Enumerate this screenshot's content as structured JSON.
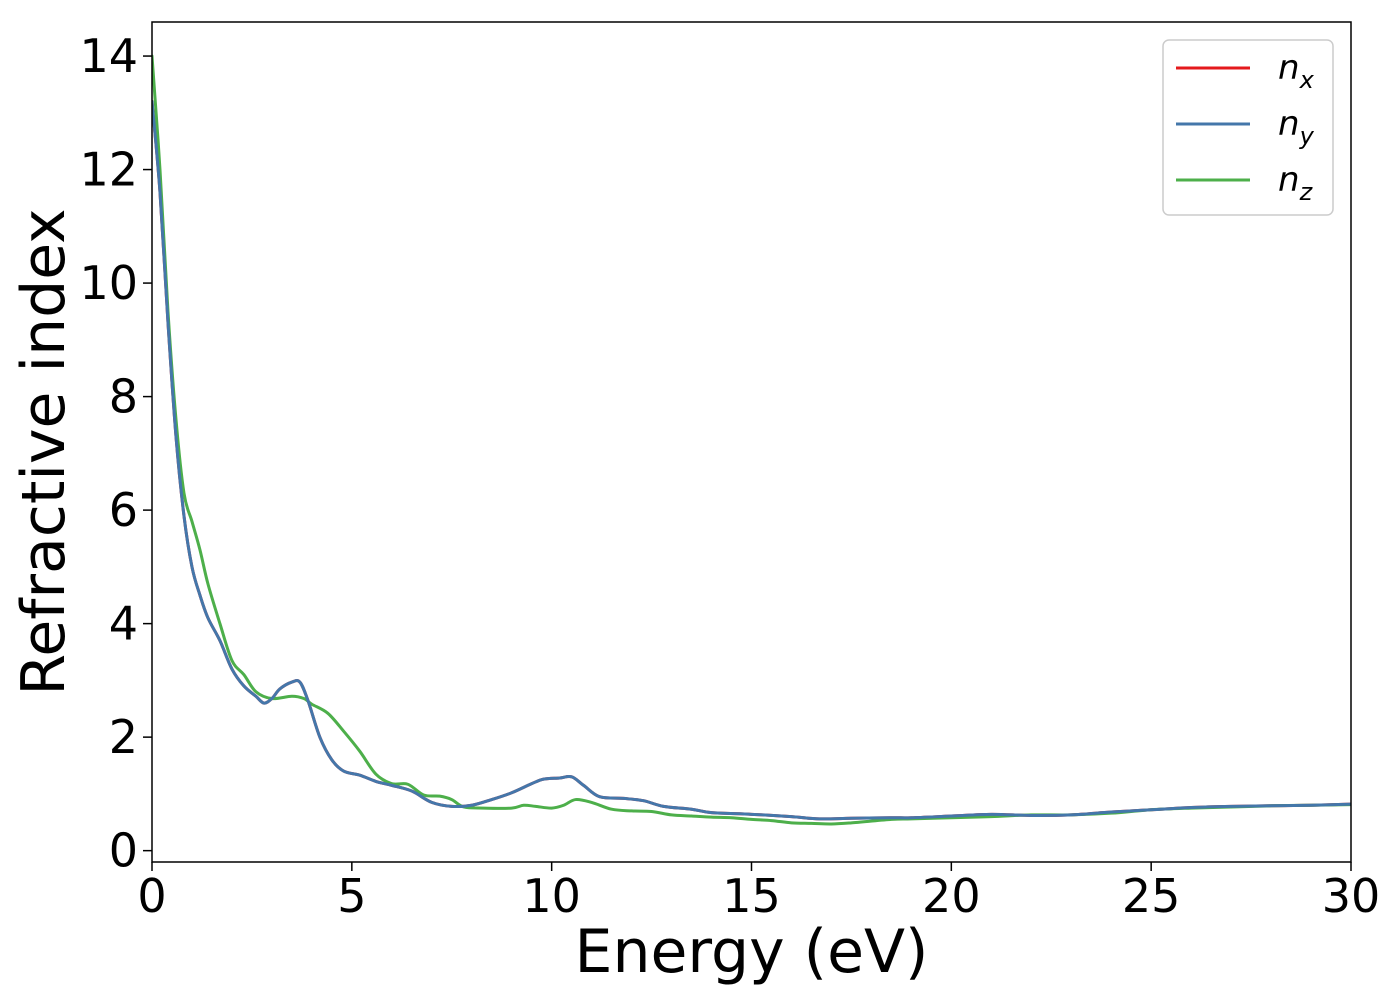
{
  "chart_data": {
    "type": "line",
    "title": "",
    "xlabel": "Energy (eV)",
    "ylabel": "Refractive index",
    "xlim": [
      0,
      30
    ],
    "ylim": [
      -0.2,
      14.6
    ],
    "xticks": [
      0,
      5,
      10,
      15,
      20,
      25,
      30
    ],
    "yticks": [
      0,
      2,
      4,
      6,
      8,
      10,
      12,
      14
    ],
    "grid": false,
    "legend": {
      "placement": "top-right"
    },
    "series": [
      {
        "name": "n_x",
        "legend_label": {
          "base": "n",
          "sub": "x"
        },
        "color": "#e41a1c",
        "points": [
          [
            0,
            13.2
          ],
          [
            0.2,
            11.6
          ],
          [
            0.4,
            9.3
          ],
          [
            0.6,
            7.3
          ],
          [
            0.8,
            5.9
          ],
          [
            1.0,
            5.0
          ],
          [
            1.2,
            4.5
          ],
          [
            1.4,
            4.1
          ],
          [
            1.7,
            3.7
          ],
          [
            2.0,
            3.2
          ],
          [
            2.3,
            2.9
          ],
          [
            2.6,
            2.72
          ],
          [
            2.8,
            2.6
          ],
          [
            3.0,
            2.68
          ],
          [
            3.2,
            2.85
          ],
          [
            3.5,
            2.97
          ],
          [
            3.7,
            2.97
          ],
          [
            3.9,
            2.65
          ],
          [
            4.2,
            2.0
          ],
          [
            4.5,
            1.6
          ],
          [
            4.8,
            1.4
          ],
          [
            5.2,
            1.33
          ],
          [
            5.6,
            1.22
          ],
          [
            6.0,
            1.15
          ],
          [
            6.5,
            1.05
          ],
          [
            7.0,
            0.85
          ],
          [
            7.5,
            0.78
          ],
          [
            8.0,
            0.8
          ],
          [
            8.5,
            0.9
          ],
          [
            9.0,
            1.02
          ],
          [
            9.5,
            1.18
          ],
          [
            9.8,
            1.26
          ],
          [
            10.2,
            1.28
          ],
          [
            10.5,
            1.3
          ],
          [
            10.8,
            1.15
          ],
          [
            11.2,
            0.95
          ],
          [
            11.8,
            0.92
          ],
          [
            12.3,
            0.88
          ],
          [
            12.8,
            0.78
          ],
          [
            13.5,
            0.73
          ],
          [
            14.0,
            0.67
          ],
          [
            15.0,
            0.64
          ],
          [
            16.0,
            0.6
          ],
          [
            16.7,
            0.56
          ],
          [
            17.5,
            0.57
          ],
          [
            18.5,
            0.58
          ],
          [
            19.0,
            0.58
          ],
          [
            20.0,
            0.61
          ],
          [
            21.0,
            0.64
          ],
          [
            22.0,
            0.62
          ],
          [
            23.0,
            0.63
          ],
          [
            24.0,
            0.68
          ],
          [
            25.0,
            0.72
          ],
          [
            26.0,
            0.76
          ],
          [
            27.0,
            0.78
          ],
          [
            28.0,
            0.79
          ],
          [
            29.0,
            0.8
          ],
          [
            30.0,
            0.82
          ]
        ]
      },
      {
        "name": "n_y",
        "legend_label": {
          "base": "n",
          "sub": "y"
        },
        "color": "#4477aa",
        "points": [
          [
            0,
            13.2
          ],
          [
            0.2,
            11.6
          ],
          [
            0.4,
            9.3
          ],
          [
            0.6,
            7.3
          ],
          [
            0.8,
            5.9
          ],
          [
            1.0,
            5.0
          ],
          [
            1.2,
            4.5
          ],
          [
            1.4,
            4.1
          ],
          [
            1.7,
            3.7
          ],
          [
            2.0,
            3.2
          ],
          [
            2.3,
            2.9
          ],
          [
            2.6,
            2.72
          ],
          [
            2.8,
            2.6
          ],
          [
            3.0,
            2.68
          ],
          [
            3.2,
            2.85
          ],
          [
            3.5,
            2.97
          ],
          [
            3.7,
            2.97
          ],
          [
            3.9,
            2.65
          ],
          [
            4.2,
            2.0
          ],
          [
            4.5,
            1.6
          ],
          [
            4.8,
            1.4
          ],
          [
            5.2,
            1.33
          ],
          [
            5.6,
            1.22
          ],
          [
            6.0,
            1.15
          ],
          [
            6.5,
            1.05
          ],
          [
            7.0,
            0.85
          ],
          [
            7.5,
            0.78
          ],
          [
            8.0,
            0.8
          ],
          [
            8.5,
            0.9
          ],
          [
            9.0,
            1.02
          ],
          [
            9.5,
            1.18
          ],
          [
            9.8,
            1.26
          ],
          [
            10.2,
            1.28
          ],
          [
            10.5,
            1.3
          ],
          [
            10.8,
            1.15
          ],
          [
            11.2,
            0.95
          ],
          [
            11.8,
            0.92
          ],
          [
            12.3,
            0.88
          ],
          [
            12.8,
            0.78
          ],
          [
            13.5,
            0.73
          ],
          [
            14.0,
            0.67
          ],
          [
            15.0,
            0.64
          ],
          [
            16.0,
            0.6
          ],
          [
            16.7,
            0.56
          ],
          [
            17.5,
            0.57
          ],
          [
            18.5,
            0.58
          ],
          [
            19.0,
            0.58
          ],
          [
            20.0,
            0.61
          ],
          [
            21.0,
            0.64
          ],
          [
            22.0,
            0.62
          ],
          [
            23.0,
            0.63
          ],
          [
            24.0,
            0.68
          ],
          [
            25.0,
            0.72
          ],
          [
            26.0,
            0.76
          ],
          [
            27.0,
            0.78
          ],
          [
            28.0,
            0.79
          ],
          [
            29.0,
            0.8
          ],
          [
            30.0,
            0.82
          ]
        ]
      },
      {
        "name": "n_z",
        "legend_label": {
          "base": "n",
          "sub": "z"
        },
        "color": "#4daf4a",
        "points": [
          [
            0,
            14.0
          ],
          [
            0.2,
            12.0
          ],
          [
            0.4,
            9.5
          ],
          [
            0.6,
            7.6
          ],
          [
            0.8,
            6.3
          ],
          [
            1.0,
            5.8
          ],
          [
            1.2,
            5.3
          ],
          [
            1.4,
            4.7
          ],
          [
            1.7,
            4.0
          ],
          [
            2.0,
            3.35
          ],
          [
            2.3,
            3.1
          ],
          [
            2.6,
            2.8
          ],
          [
            3.0,
            2.68
          ],
          [
            3.5,
            2.72
          ],
          [
            3.8,
            2.68
          ],
          [
            4.0,
            2.58
          ],
          [
            4.4,
            2.42
          ],
          [
            4.8,
            2.1
          ],
          [
            5.2,
            1.75
          ],
          [
            5.6,
            1.35
          ],
          [
            6.0,
            1.18
          ],
          [
            6.4,
            1.17
          ],
          [
            6.8,
            0.98
          ],
          [
            7.2,
            0.96
          ],
          [
            7.5,
            0.9
          ],
          [
            7.8,
            0.77
          ],
          [
            8.3,
            0.75
          ],
          [
            9.0,
            0.75
          ],
          [
            9.3,
            0.8
          ],
          [
            9.6,
            0.78
          ],
          [
            10.0,
            0.75
          ],
          [
            10.3,
            0.8
          ],
          [
            10.6,
            0.9
          ],
          [
            11.0,
            0.85
          ],
          [
            11.5,
            0.73
          ],
          [
            12.0,
            0.7
          ],
          [
            12.5,
            0.69
          ],
          [
            13.0,
            0.63
          ],
          [
            13.5,
            0.61
          ],
          [
            14.0,
            0.59
          ],
          [
            14.5,
            0.58
          ],
          [
            15.0,
            0.55
          ],
          [
            15.5,
            0.53
          ],
          [
            16.0,
            0.49
          ],
          [
            16.5,
            0.48
          ],
          [
            17.0,
            0.47
          ],
          [
            17.5,
            0.49
          ],
          [
            18.5,
            0.55
          ],
          [
            19.0,
            0.56
          ],
          [
            20.0,
            0.58
          ],
          [
            21.0,
            0.6
          ],
          [
            22.0,
            0.63
          ],
          [
            23.0,
            0.63
          ],
          [
            24.0,
            0.66
          ],
          [
            25.0,
            0.72
          ],
          [
            26.0,
            0.75
          ],
          [
            27.0,
            0.77
          ],
          [
            28.0,
            0.79
          ],
          [
            29.0,
            0.8
          ],
          [
            30.0,
            0.81
          ]
        ]
      }
    ]
  }
}
